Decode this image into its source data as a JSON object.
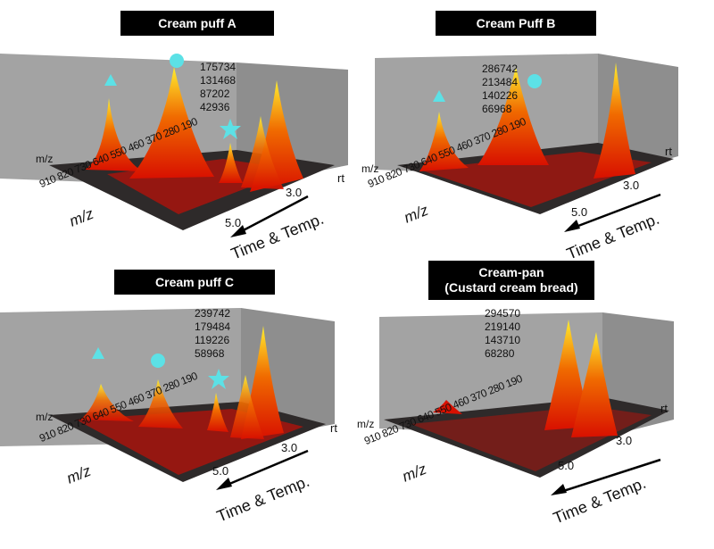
{
  "chart_data": [
    {
      "type": "surface",
      "title": "Cream puff A",
      "z_ticks": [
        "175734",
        "131468",
        "87202",
        "42936"
      ],
      "y_axis_label": "m/z",
      "x_axis_label": "rt",
      "mz_label": "m/z",
      "mz_ticks": [
        "910",
        "820",
        "730",
        "640",
        "550",
        "460",
        "370",
        "280",
        "190"
      ],
      "rt_ticks": [
        "3.0",
        "5.0"
      ],
      "direction_label": "Time & Temp.",
      "markers": [
        "triangle",
        "circle",
        "star"
      ],
      "colors": {
        "marker": "#5ce1e6",
        "floor": "#2a2a2a",
        "wall": "#9c9c9c"
      }
    },
    {
      "type": "surface",
      "title": "Cream Puff B",
      "z_ticks": [
        "286742",
        "213484",
        "140226",
        "66968"
      ],
      "y_axis_label": "m/z",
      "x_axis_label": "rt",
      "mz_label": "m/z",
      "mz_ticks": [
        "910",
        "820",
        "730",
        "640",
        "550",
        "460",
        "370",
        "280",
        "190"
      ],
      "rt_ticks": [
        "3.0",
        "5.0"
      ],
      "direction_label": "Time & Temp.",
      "markers": [
        "triangle",
        "circle"
      ],
      "colors": {
        "marker": "#5ce1e6",
        "floor": "#2a2a2a",
        "wall": "#9c9c9c"
      }
    },
    {
      "type": "surface",
      "title": "Cream puff C",
      "z_ticks": [
        "239742",
        "179484",
        "119226",
        "58968"
      ],
      "y_axis_label": "m/z",
      "x_axis_label": "rt",
      "mz_label": "m/z",
      "mz_ticks": [
        "910",
        "820",
        "730",
        "640",
        "550",
        "460",
        "370",
        "280",
        "190"
      ],
      "rt_ticks": [
        "3.0",
        "5.0"
      ],
      "direction_label": "Time & Temp.",
      "markers": [
        "triangle",
        "circle",
        "star"
      ],
      "colors": {
        "marker": "#5ce1e6",
        "floor": "#2a2a2a",
        "wall": "#9c9c9c"
      }
    },
    {
      "type": "surface",
      "title": "Cream-pan",
      "subtitle": "(Custard cream bread)",
      "z_ticks": [
        "294570",
        "219140",
        "143710",
        "68280"
      ],
      "y_axis_label": "m/z",
      "x_axis_label": "rt",
      "mz_label": "m/z",
      "mz_ticks": [
        "910",
        "820",
        "730",
        "640",
        "550",
        "460",
        "370",
        "280",
        "190"
      ],
      "rt_ticks": [
        "3.0",
        "5.0"
      ],
      "direction_label": "Time & Temp.",
      "markers": [],
      "colors": {
        "marker": "#5ce1e6",
        "floor": "#2a2a2a",
        "wall": "#9c9c9c"
      }
    }
  ]
}
